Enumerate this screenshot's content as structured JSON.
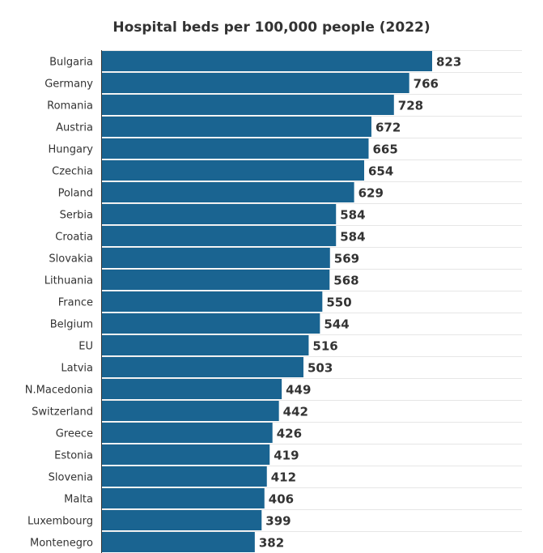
{
  "chart_data": {
    "type": "bar",
    "orientation": "horizontal",
    "title": "Hospital beds per 100,000 people (2022)",
    "xlabel": "",
    "ylabel": "",
    "xlim": [
      0,
      823
    ],
    "grid": true,
    "bar_color": "#1a6491",
    "categories": [
      "Bulgaria",
      "Germany",
      "Romania",
      "Austria",
      "Hungary",
      "Czechia",
      "Poland",
      "Serbia",
      "Croatia",
      "Slovakia",
      "Lithuania",
      "France",
      "Belgium",
      "EU",
      "Latvia",
      "N.Macedonia",
      "Switzerland",
      "Greece",
      "Estonia",
      "Slovenia",
      "Malta",
      "Luxembourg",
      "Montenegro"
    ],
    "values": [
      823,
      766,
      728,
      672,
      665,
      654,
      629,
      584,
      584,
      569,
      568,
      550,
      544,
      516,
      503,
      449,
      442,
      426,
      419,
      412,
      406,
      399,
      382
    ]
  }
}
